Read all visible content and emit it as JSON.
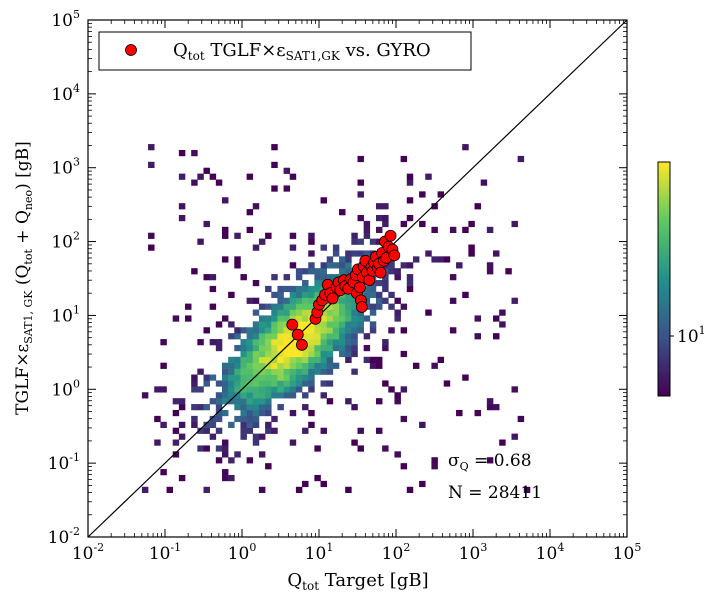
{
  "chart_data": {
    "type": "scatter",
    "xlabel_main": "Q",
    "xlabel_sub": "tot",
    "xlabel_tail": " Target [gB]",
    "ylabel_prefix": "TGLF×ε",
    "ylabel_prefix_sub": "SAT1, GK",
    "ylabel_paren_open": " (Q",
    "ylabel_sub1": "tot",
    "ylabel_plus": " + Q",
    "ylabel_sub2": "neo",
    "ylabel_close": ") [gB]",
    "xscale": "log",
    "yscale": "log",
    "xlim": [
      0.01,
      100000
    ],
    "ylim": [
      0.01,
      100000
    ],
    "x_ticks": [
      {
        "base": "10",
        "exp": "-2"
      },
      {
        "base": "10",
        "exp": "-1"
      },
      {
        "base": "10",
        "exp": "0"
      },
      {
        "base": "10",
        "exp": "1"
      },
      {
        "base": "10",
        "exp": "2"
      },
      {
        "base": "10",
        "exp": "3"
      },
      {
        "base": "10",
        "exp": "4"
      },
      {
        "base": "10",
        "exp": "5"
      }
    ],
    "y_ticks": [
      {
        "base": "10",
        "exp": "-2"
      },
      {
        "base": "10",
        "exp": "-1"
      },
      {
        "base": "10",
        "exp": "0"
      },
      {
        "base": "10",
        "exp": "1"
      },
      {
        "base": "10",
        "exp": "2"
      },
      {
        "base": "10",
        "exp": "3"
      },
      {
        "base": "10",
        "exp": "4"
      },
      {
        "base": "10",
        "exp": "5"
      }
    ],
    "legend": {
      "placement": "top-left",
      "main": "Q",
      "sub1": "tot",
      "mid": " TGLF×ε",
      "sub2": "SAT1,GK",
      "tail": " vs. GYRO",
      "marker_color": "#ff0000"
    },
    "identity_line": true,
    "colorbar": {
      "colormap": "viridis",
      "scale": "log",
      "tick_base": "10",
      "tick_exp": "1"
    },
    "annotations": {
      "sigma_symbol": "σ",
      "sigma_sub": "Q",
      "sigma_value": " = 0.68",
      "n_label": "N = 28411"
    },
    "series": [
      {
        "marker_color": "#ff0000",
        "points": [
          [
            4.5,
            7.5
          ],
          [
            5.3,
            5.5
          ],
          [
            6.0,
            4.0
          ],
          [
            9.0,
            9.0
          ],
          [
            9.5,
            11.0
          ],
          [
            10.0,
            14.0
          ],
          [
            11.0,
            16.0
          ],
          [
            12.0,
            19.0
          ],
          [
            13.0,
            26.0
          ],
          [
            14.0,
            20.0
          ],
          [
            15.0,
            17.0
          ],
          [
            17.0,
            24.0
          ],
          [
            18.0,
            28.0
          ],
          [
            19.0,
            22.0
          ],
          [
            21.0,
            30.0
          ],
          [
            22.0,
            25.0
          ],
          [
            24.0,
            23.0
          ],
          [
            26.0,
            31.0
          ],
          [
            28.0,
            28.0
          ],
          [
            30.0,
            35.0
          ],
          [
            31.0,
            20.0
          ],
          [
            32.0,
            42.0
          ],
          [
            34.0,
            24.0
          ],
          [
            35.0,
            16.0
          ],
          [
            36.0,
            13.0
          ],
          [
            37.0,
            33.0
          ],
          [
            38.0,
            46.0
          ],
          [
            40.0,
            55.0
          ],
          [
            42.0,
            38.0
          ],
          [
            45.0,
            30.0
          ],
          [
            48.0,
            45.0
          ],
          [
            50.0,
            40.0
          ],
          [
            52.0,
            52.0
          ],
          [
            55.0,
            62.0
          ],
          [
            58.0,
            44.0
          ],
          [
            60.0,
            50.0
          ],
          [
            63.0,
            38.0
          ],
          [
            66.0,
            70.0
          ],
          [
            70.0,
            55.0
          ],
          [
            72.0,
            100.0
          ],
          [
            75.0,
            60.0
          ],
          [
            80.0,
            85.0
          ],
          [
            85.0,
            120.0
          ],
          [
            90.0,
            78.0
          ],
          [
            95.0,
            65.0
          ]
        ]
      }
    ]
  }
}
